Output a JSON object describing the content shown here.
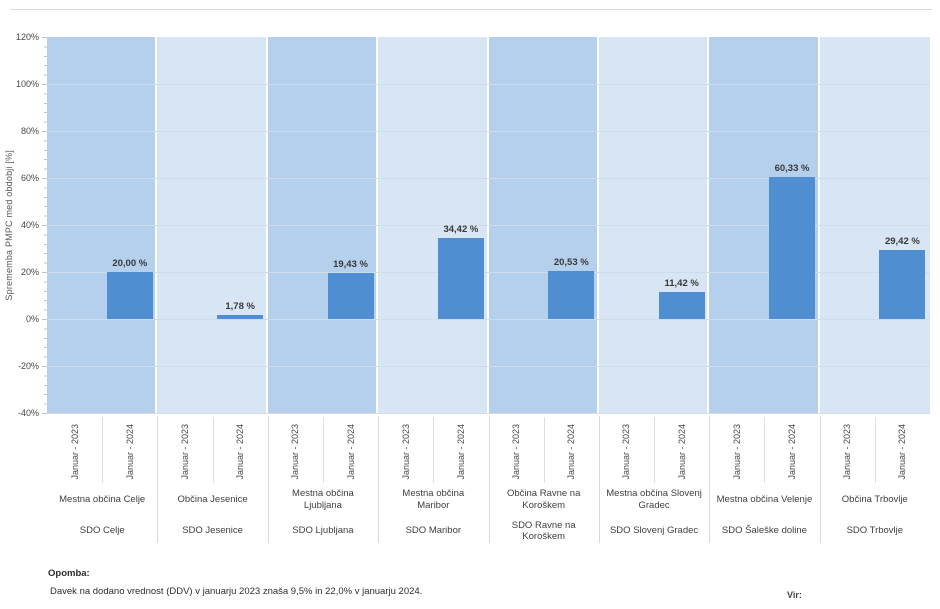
{
  "page": {
    "note_title": "Opomba:",
    "note_text": "Davek na dodano vrednost (DDV) v januarju 2023 znaša 9,5% in 22,0% v januarju 2024.",
    "source_label": "Vir:"
  },
  "chart_data": {
    "type": "bar",
    "title": "",
    "xlabel": "",
    "ylabel": "Sprememba PMPC med obdobji [%]",
    "ylim": [
      -40,
      120
    ],
    "ytick_step": 20,
    "yticks": [
      120,
      100,
      80,
      60,
      40,
      20,
      0,
      -20,
      -40
    ],
    "ytick_labels": [
      "120%",
      "100%",
      "80%",
      "60%",
      "40%",
      "20%",
      "0%",
      "-20%",
      "-40%"
    ],
    "grid": true,
    "legend": false,
    "period_labels": [
      "Januar - 2023",
      "Januar - 2024"
    ],
    "value_period": "Januar - 2024",
    "groups": [
      {
        "municipality": "Mestna občina Celje",
        "sdo": "SDO Celje",
        "value": 20.0,
        "value_label": "20,00 %"
      },
      {
        "municipality": "Občina Jesenice",
        "sdo": "SDO Jesenice",
        "value": 1.78,
        "value_label": "1,78 %"
      },
      {
        "municipality": "Mestna občina Ljubljana",
        "sdo": "SDO Ljubljana",
        "value": 19.43,
        "value_label": "19,43 %"
      },
      {
        "municipality": "Mestna občina Maribor",
        "sdo": "SDO Maribor",
        "value": 34.42,
        "value_label": "34,42 %"
      },
      {
        "municipality": "Občina Ravne na Koroškem",
        "sdo": "SDO Ravne na Koroškem",
        "value": 20.53,
        "value_label": "20,53 %"
      },
      {
        "municipality": "Mestna občina Slovenj Gradec",
        "sdo": "SDO Slovenj Gradec",
        "value": 11.42,
        "value_label": "11,42 %"
      },
      {
        "municipality": "Mestna občina Velenje",
        "sdo": "SDO Šaleške doline",
        "value": 60.33,
        "value_label": "60,33 %"
      },
      {
        "municipality": "Občina Trbovlje",
        "sdo": "SDO Trbovlje",
        "value": 29.42,
        "value_label": "29,42 %"
      }
    ],
    "colors": {
      "bar": "#4f8fd1",
      "panel_dark": "#b5d0ec",
      "panel_light": "#d8e5f4",
      "gridline": "#cfdcea",
      "axis": "#b9c4d0"
    }
  }
}
